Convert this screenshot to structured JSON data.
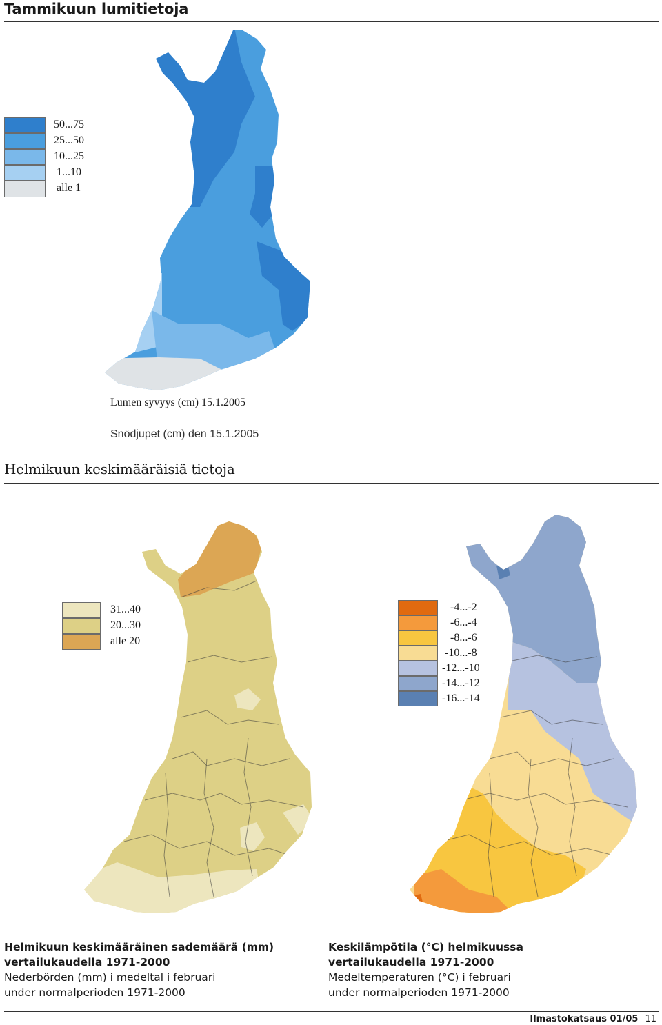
{
  "section1": {
    "title": "Tammikuun lumitietoja",
    "legend": [
      {
        "label": "50...75",
        "color": "#2f7fcc"
      },
      {
        "label": "25...50",
        "color": "#4a9ede"
      },
      {
        "label": "10...25",
        "color": "#7ab8ea"
      },
      {
        "label": "1...10",
        "color": "#a6d0f2"
      },
      {
        "label": "alle 1",
        "color": "#dfe3e6"
      }
    ],
    "caption_fi": "Lumen syvyys (cm) 15.1.2005",
    "caption_sv": "Snödjupet (cm) den 15.1.2005"
  },
  "section2": {
    "title": "Helmikuun keskimääräisiä tietoja",
    "precip_legend": [
      {
        "label": "31...40",
        "color": "#ede6be"
      },
      {
        "label": "20...30",
        "color": "#ddd086"
      },
      {
        "label": "alle 20",
        "color": "#dca654"
      }
    ],
    "temp_legend": [
      {
        "label": "-4...-2",
        "color": "#e06a10"
      },
      {
        "label": "-6...-4",
        "color": "#f49a3c"
      },
      {
        "label": "-8...-6",
        "color": "#f8c640"
      },
      {
        "label": "-10...-8",
        "color": "#f8dc94"
      },
      {
        "label": "-12...-10",
        "color": "#b6c2e0"
      },
      {
        "label": "-14...-12",
        "color": "#8ea6cc"
      },
      {
        "label": "-16...-14",
        "color": "#5a80b2"
      }
    ],
    "precip_caption": {
      "line1": "Helmikuun keskimääräinen sademäärä (mm)",
      "line2": "vertailukaudella 1971-2000",
      "line3": "Nederbörden (mm) i medeltal  i februari",
      "line4": "under normalperioden 1971-2000"
    },
    "temp_caption": {
      "line1": "Keskilämpötila (°C)  helmikuussa",
      "line2": "vertailukaudella 1971-2000",
      "line3": "Medeltemperaturen (°C) i februari",
      "line4": "under normalperioden 1971-2000"
    }
  },
  "footer": {
    "publication": "Ilmastokatsaus 01/05",
    "page": "11"
  }
}
